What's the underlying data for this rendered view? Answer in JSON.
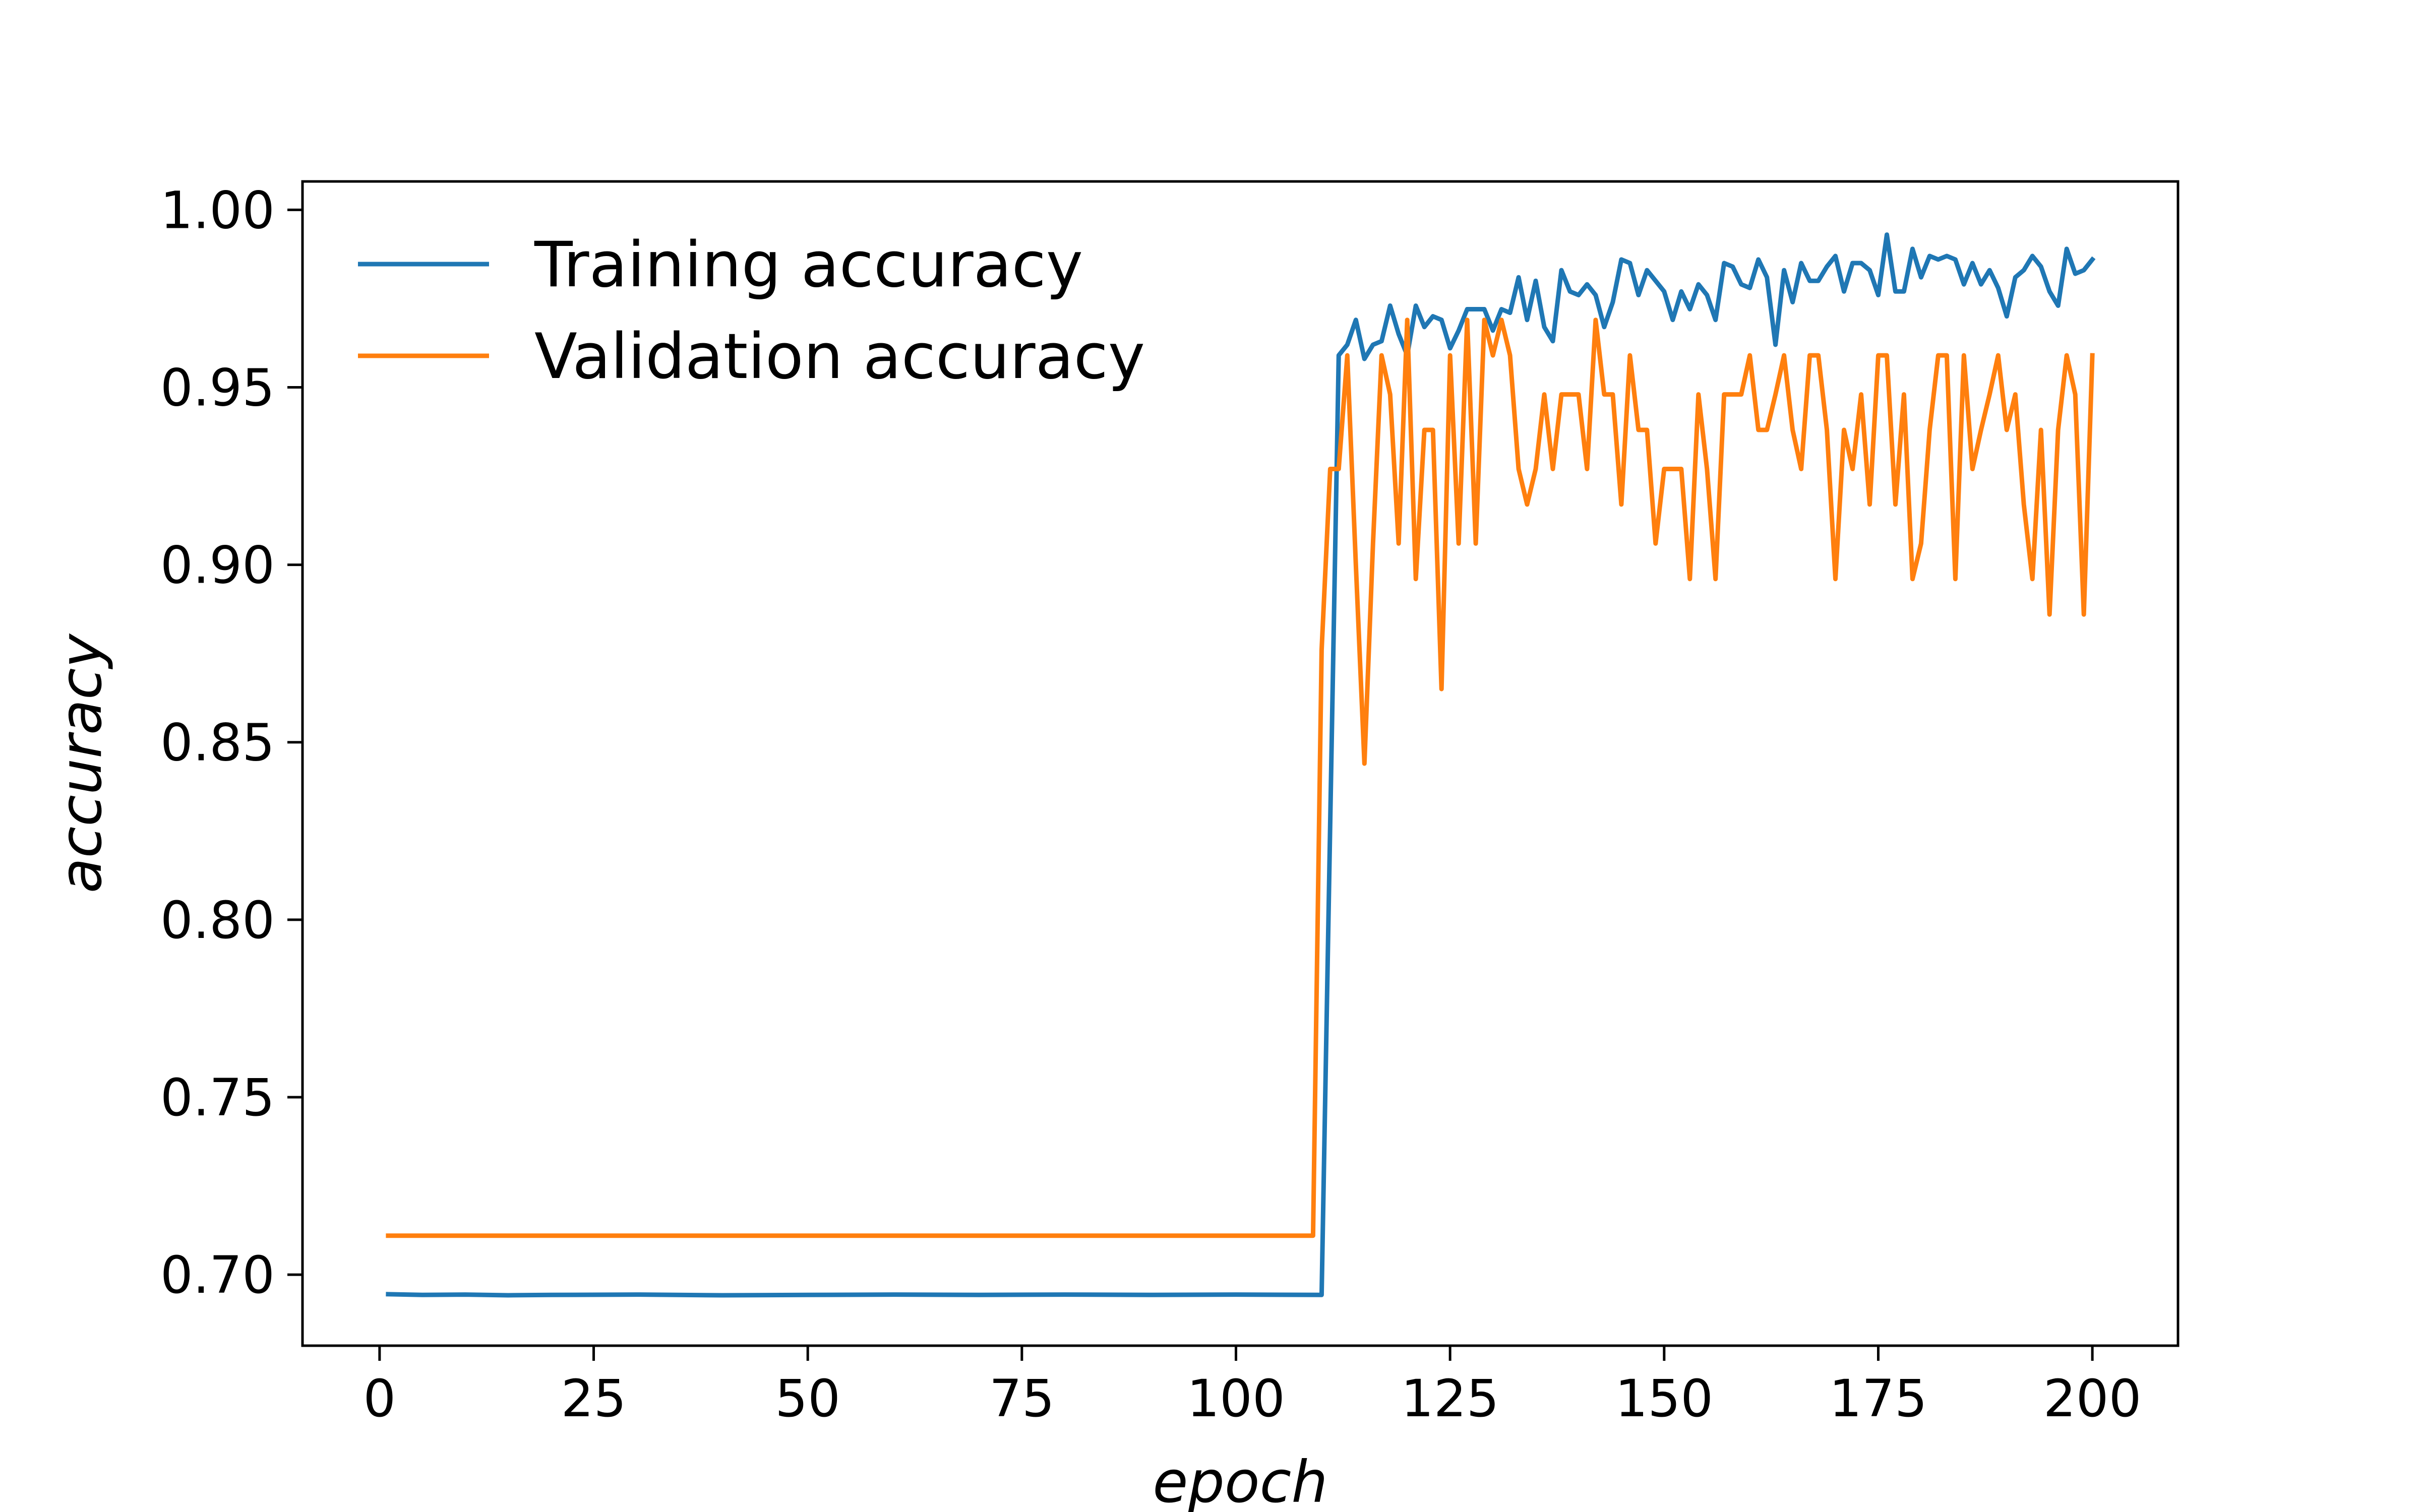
{
  "chart_data": {
    "type": "line",
    "xlabel": "epoch",
    "ylabel": "accuracy",
    "xlim": [
      -9,
      210
    ],
    "ylim": [
      0.68,
      1.008
    ],
    "xticks": [
      0,
      25,
      50,
      75,
      100,
      125,
      150,
      175,
      200
    ],
    "yticks": [
      0.7,
      0.75,
      0.8,
      0.85,
      0.9,
      0.95,
      1.0
    ],
    "xtick_labels": [
      "0",
      "25",
      "50",
      "75",
      "100",
      "125",
      "150",
      "175",
      "200"
    ],
    "ytick_labels": [
      "0.70",
      "0.75",
      "0.80",
      "0.85",
      "0.90",
      "0.95",
      "1.00"
    ],
    "grid": false,
    "legend_position": "top-left",
    "series": [
      {
        "name": "Training accuracy",
        "color": "#1f77b4",
        "x": [
          1,
          5,
          10,
          15,
          20,
          30,
          40,
          50,
          60,
          70,
          80,
          90,
          100,
          110,
          112,
          113,
          114,
          115,
          116,
          117,
          118,
          119,
          120,
          121,
          122,
          123,
          124,
          125,
          126,
          127,
          128,
          129,
          130,
          131,
          132,
          133,
          134,
          135,
          136,
          137,
          138,
          139,
          140,
          141,
          142,
          143,
          144,
          145,
          146,
          147,
          148,
          149,
          150,
          151,
          152,
          153,
          154,
          155,
          156,
          157,
          158,
          159,
          160,
          161,
          162,
          163,
          164,
          165,
          166,
          167,
          168,
          169,
          170,
          171,
          172,
          173,
          174,
          175,
          176,
          177,
          178,
          179,
          180,
          181,
          182,
          183,
          184,
          185,
          186,
          187,
          188,
          189,
          190,
          191,
          192,
          193,
          194,
          195,
          196,
          197,
          198,
          199,
          200
        ],
        "values": [
          0.6945,
          0.6943,
          0.6944,
          0.6942,
          0.6943,
          0.6944,
          0.6942,
          0.6943,
          0.6944,
          0.6943,
          0.6944,
          0.6943,
          0.6944,
          0.6943,
          0.959,
          0.962,
          0.969,
          0.958,
          0.962,
          0.963,
          0.973,
          0.965,
          0.959,
          0.973,
          0.967,
          0.97,
          0.969,
          0.961,
          0.966,
          0.972,
          0.972,
          0.972,
          0.966,
          0.972,
          0.971,
          0.981,
          0.969,
          0.98,
          0.967,
          0.963,
          0.983,
          0.977,
          0.976,
          0.979,
          0.976,
          0.967,
          0.974,
          0.986,
          0.985,
          0.976,
          0.983,
          0.98,
          0.977,
          0.969,
          0.977,
          0.972,
          0.979,
          0.976,
          0.969,
          0.985,
          0.984,
          0.979,
          0.978,
          0.986,
          0.981,
          0.962,
          0.983,
          0.974,
          0.985,
          0.98,
          0.98,
          0.984,
          0.987,
          0.977,
          0.985,
          0.985,
          0.983,
          0.976,
          0.993,
          0.977,
          0.977,
          0.989,
          0.981,
          0.987,
          0.986,
          0.987,
          0.986,
          0.979,
          0.985,
          0.979,
          0.983,
          0.978,
          0.97,
          0.981,
          0.983,
          0.987,
          0.984,
          0.977,
          0.973,
          0.989,
          0.982,
          0.983,
          0.986
        ]
      },
      {
        "name": "Validation accuracy",
        "color": "#ff7f0e",
        "x": [
          1,
          109,
          110,
          111,
          112,
          113,
          114,
          115,
          116,
          117,
          118,
          119,
          120,
          121,
          122,
          123,
          124,
          125,
          126,
          127,
          128,
          129,
          130,
          131,
          132,
          133,
          134,
          135,
          136,
          137,
          138,
          139,
          140,
          141,
          142,
          143,
          144,
          145,
          146,
          147,
          148,
          149,
          150,
          151,
          152,
          153,
          154,
          155,
          156,
          157,
          158,
          159,
          160,
          161,
          162,
          163,
          164,
          165,
          166,
          167,
          168,
          169,
          170,
          171,
          172,
          173,
          174,
          175,
          176,
          177,
          178,
          179,
          180,
          181,
          182,
          183,
          184,
          185,
          186,
          187,
          188,
          189,
          190,
          191,
          192,
          193,
          194,
          195,
          196,
          197,
          198,
          199,
          200
        ],
        "values": [
          0.711,
          0.711,
          0.876,
          0.927,
          0.927,
          0.959,
          0.9,
          0.844,
          0.906,
          0.959,
          0.948,
          0.906,
          0.969,
          0.896,
          0.938,
          0.938,
          0.865,
          0.959,
          0.906,
          0.969,
          0.906,
          0.969,
          0.959,
          0.969,
          0.959,
          0.927,
          0.917,
          0.927,
          0.948,
          0.927,
          0.948,
          0.948,
          0.948,
          0.927,
          0.969,
          0.948,
          0.948,
          0.917,
          0.959,
          0.938,
          0.938,
          0.906,
          0.927,
          0.927,
          0.927,
          0.896,
          0.948,
          0.927,
          0.896,
          0.948,
          0.948,
          0.948,
          0.959,
          0.938,
          0.938,
          0.948,
          0.959,
          0.938,
          0.927,
          0.959,
          0.959,
          0.938,
          0.896,
          0.938,
          0.927,
          0.948,
          0.917,
          0.959,
          0.959,
          0.917,
          0.948,
          0.896,
          0.906,
          0.938,
          0.959,
          0.959,
          0.896,
          0.959,
          0.927,
          0.938,
          0.948,
          0.959,
          0.938,
          0.948,
          0.917,
          0.896,
          0.938,
          0.886,
          0.938,
          0.959,
          0.948,
          0.886,
          0.959
        ]
      }
    ]
  }
}
